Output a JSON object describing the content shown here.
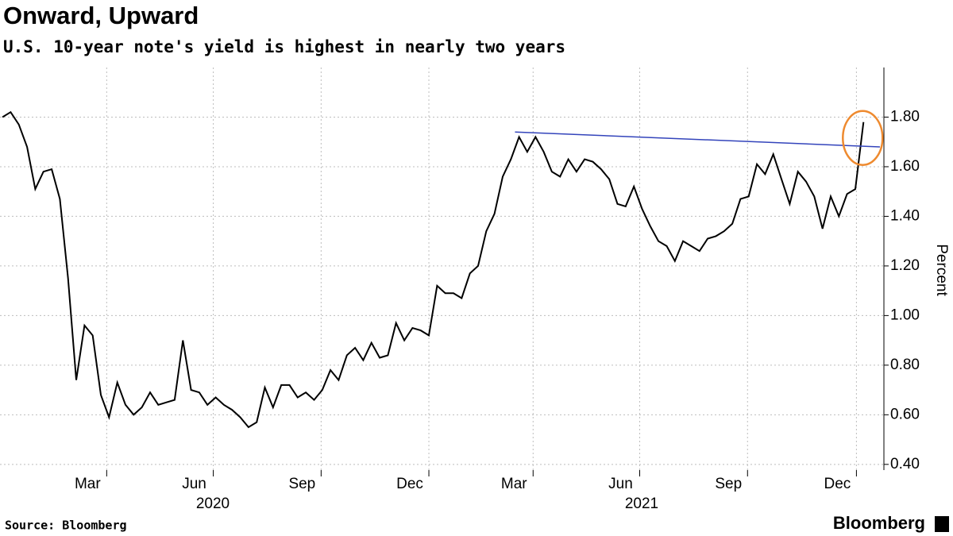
{
  "chart_data": {
    "type": "line",
    "title": "Onward, Upward",
    "subtitle": "U.S. 10-year note's yield is highest in nearly two years",
    "y_label": "Percent",
    "source": "Source: Bloomberg",
    "brand": "Bloomberg",
    "series": [
      {
        "name": "U.S. 10-year yield",
        "color": "#000000",
        "values": [
          1.8,
          1.82,
          1.77,
          1.68,
          1.51,
          1.58,
          1.59,
          1.47,
          1.15,
          0.74,
          0.96,
          0.92,
          0.68,
          0.59,
          0.73,
          0.64,
          0.6,
          0.63,
          0.69,
          0.64,
          0.65,
          0.66,
          0.9,
          0.7,
          0.69,
          0.64,
          0.67,
          0.64,
          0.62,
          0.59,
          0.55,
          0.57,
          0.71,
          0.63,
          0.72,
          0.72,
          0.67,
          0.69,
          0.66,
          0.7,
          0.78,
          0.74,
          0.84,
          0.87,
          0.82,
          0.89,
          0.83,
          0.84,
          0.97,
          0.9,
          0.95,
          0.94,
          0.92,
          1.12,
          1.09,
          1.09,
          1.07,
          1.17,
          1.2,
          1.34,
          1.41,
          1.56,
          1.63,
          1.72,
          1.66,
          1.72,
          1.66,
          1.58,
          1.56,
          1.63,
          1.58,
          1.63,
          1.62,
          1.59,
          1.55,
          1.45,
          1.44,
          1.52,
          1.43,
          1.36,
          1.3,
          1.28,
          1.22,
          1.3,
          1.28,
          1.26,
          1.31,
          1.32,
          1.34,
          1.37,
          1.47,
          1.48,
          1.61,
          1.57,
          1.65,
          1.55,
          1.45,
          1.58,
          1.54,
          1.48,
          1.35,
          1.48,
          1.4,
          1.49,
          1.51,
          1.78
        ]
      }
    ],
    "trendline": {
      "color": "#3344bb",
      "x": [
        62.5,
        107
      ],
      "values": [
        1.74,
        1.68
      ]
    },
    "xlim": [
      -0.3,
      107.2
    ],
    "xticks": [
      {
        "value": 12.71,
        "label": "Mar"
      },
      {
        "value": 25.71,
        "label": "Jun"
      },
      {
        "value": 38.86,
        "label": "Sep"
      },
      {
        "value": 52.0,
        "label": "Dec"
      },
      {
        "value": 64.71,
        "label": "Mar"
      },
      {
        "value": 77.71,
        "label": "Jun"
      },
      {
        "value": 90.86,
        "label": "Sep"
      },
      {
        "value": 104.14,
        "label": "Dec"
      }
    ],
    "year_labels": [
      "2020",
      "2021"
    ],
    "ylim": [
      0.377,
      2.0
    ],
    "yticks": [
      {
        "value": 0.4,
        "label": "0.40"
      },
      {
        "value": 0.6,
        "label": "0.60"
      },
      {
        "value": 0.8,
        "label": "0.80"
      },
      {
        "value": 1.0,
        "label": "1.00"
      },
      {
        "value": 1.2,
        "label": "1.20"
      },
      {
        "value": 1.4,
        "label": "1.40"
      },
      {
        "value": 1.6,
        "label": "1.60"
      },
      {
        "value": 1.8,
        "label": "1.80"
      }
    ],
    "grid": true
  }
}
